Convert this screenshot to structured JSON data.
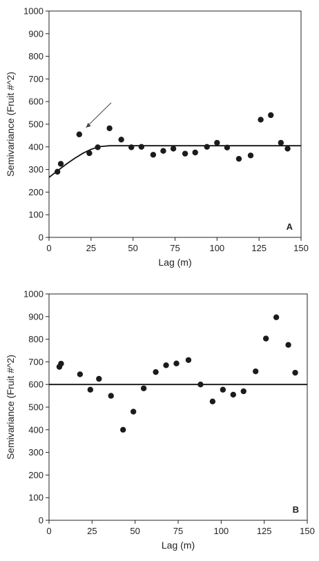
{
  "chart_data": [
    {
      "type": "scatter",
      "panel_label": "A",
      "xlabel": "Lag (m)",
      "ylabel": "Semivariance (Fruit #^2)",
      "xlim": [
        0,
        150
      ],
      "ylim": [
        0,
        1000
      ],
      "xticks": [
        "0",
        "25",
        "50",
        "75",
        "100",
        "125",
        "150"
      ],
      "yticks": [
        "0",
        "100",
        "200",
        "300",
        "400",
        "500",
        "600",
        "700",
        "800",
        "900",
        "1000"
      ],
      "grid": false,
      "annotation": "arrow pointing to point at lag 18",
      "points": [
        {
          "x": 5,
          "y": 290
        },
        {
          "x": 7,
          "y": 325
        },
        {
          "x": 18,
          "y": 455
        },
        {
          "x": 24,
          "y": 372
        },
        {
          "x": 29,
          "y": 398
        },
        {
          "x": 36,
          "y": 482
        },
        {
          "x": 43,
          "y": 432
        },
        {
          "x": 49,
          "y": 398
        },
        {
          "x": 55,
          "y": 400
        },
        {
          "x": 62,
          "y": 365
        },
        {
          "x": 68,
          "y": 382
        },
        {
          "x": 74,
          "y": 392
        },
        {
          "x": 81,
          "y": 370
        },
        {
          "x": 87,
          "y": 375
        },
        {
          "x": 94,
          "y": 400
        },
        {
          "x": 100,
          "y": 418
        },
        {
          "x": 106,
          "y": 397
        },
        {
          "x": 113,
          "y": 347
        },
        {
          "x": 120,
          "y": 362
        },
        {
          "x": 126,
          "y": 520
        },
        {
          "x": 132,
          "y": 540
        },
        {
          "x": 138,
          "y": 418
        },
        {
          "x": 142,
          "y": 392
        }
      ],
      "fit_line": {
        "type": "spherical",
        "nugget": 265,
        "sill": 405,
        "range": 36,
        "x": [
          0,
          5,
          10,
          15,
          20,
          25,
          30,
          36,
          150
        ],
        "y": [
          265,
          294,
          322,
          348,
          371,
          389,
          401,
          405,
          405
        ]
      }
    },
    {
      "type": "scatter",
      "panel_label": "B",
      "xlabel": "Lag (m)",
      "ylabel": "Semivariance (Fruit #^2)",
      "xlim": [
        0,
        150
      ],
      "ylim": [
        0,
        1000
      ],
      "xticks": [
        "0",
        "25",
        "50",
        "75",
        "100",
        "125",
        "150"
      ],
      "yticks": [
        "0",
        "100",
        "200",
        "300",
        "400",
        "500",
        "600",
        "700",
        "800",
        "900",
        "1000"
      ],
      "grid": false,
      "points": [
        {
          "x": 6,
          "y": 678
        },
        {
          "x": 7,
          "y": 692
        },
        {
          "x": 18,
          "y": 645
        },
        {
          "x": 24,
          "y": 577
        },
        {
          "x": 29,
          "y": 625
        },
        {
          "x": 36,
          "y": 550
        },
        {
          "x": 43,
          "y": 400
        },
        {
          "x": 49,
          "y": 480
        },
        {
          "x": 55,
          "y": 583
        },
        {
          "x": 62,
          "y": 655
        },
        {
          "x": 68,
          "y": 685
        },
        {
          "x": 74,
          "y": 693
        },
        {
          "x": 81,
          "y": 708
        },
        {
          "x": 88,
          "y": 600
        },
        {
          "x": 95,
          "y": 525
        },
        {
          "x": 101,
          "y": 577
        },
        {
          "x": 107,
          "y": 555
        },
        {
          "x": 113,
          "y": 570
        },
        {
          "x": 120,
          "y": 658
        },
        {
          "x": 126,
          "y": 803
        },
        {
          "x": 132,
          "y": 897
        },
        {
          "x": 139,
          "y": 775
        },
        {
          "x": 143,
          "y": 652
        }
      ],
      "fit_line": {
        "type": "pure-nugget",
        "x": [
          0,
          150
        ],
        "y": [
          600,
          600
        ]
      }
    }
  ]
}
